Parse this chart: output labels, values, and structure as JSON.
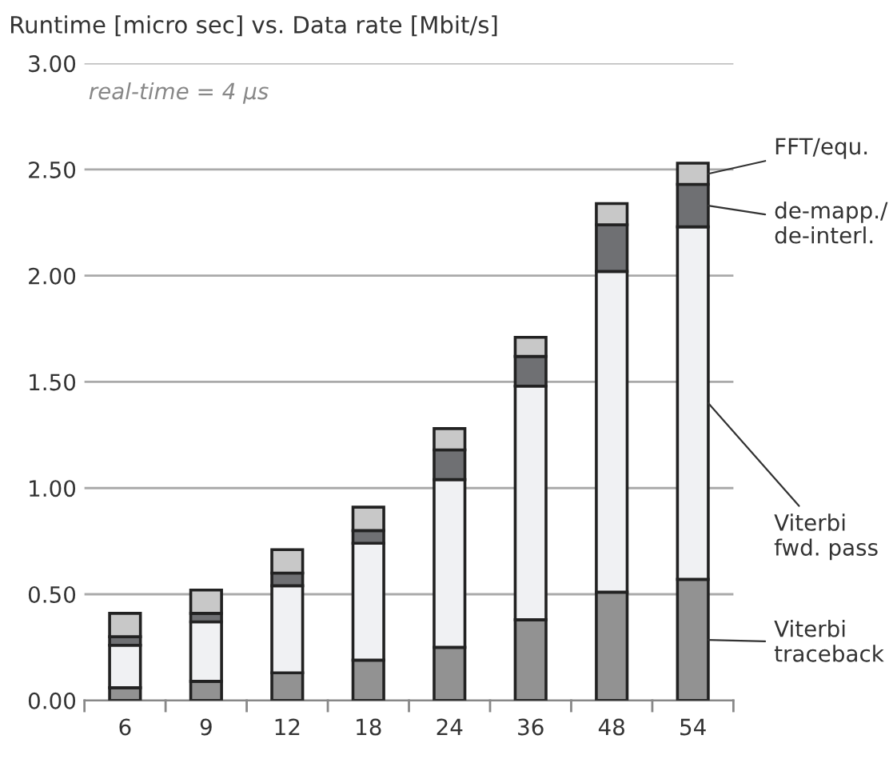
{
  "chart_data": {
    "type": "bar",
    "stacked": true,
    "title": "Runtime [micro sec] vs. Data rate [Mbit/s]",
    "categories": [
      "6",
      "9",
      "12",
      "18",
      "24",
      "36",
      "48",
      "54"
    ],
    "series": [
      {
        "name": "Viterbi\ntraceback",
        "color": "#929292",
        "values": [
          0.06,
          0.09,
          0.13,
          0.19,
          0.25,
          0.38,
          0.51,
          0.57
        ]
      },
      {
        "name": "Viterbi\nfwd. pass",
        "color": "#f0f1f3",
        "values": [
          0.2,
          0.28,
          0.41,
          0.55,
          0.79,
          1.1,
          1.51,
          1.66
        ]
      },
      {
        "name": "de-mapp./\nde-interl.",
        "color": "#6f7073",
        "values": [
          0.04,
          0.04,
          0.06,
          0.06,
          0.14,
          0.14,
          0.22,
          0.2
        ]
      },
      {
        "name": "FFT/equ.",
        "color": "#c8c8c8",
        "values": [
          0.11,
          0.11,
          0.11,
          0.11,
          0.1,
          0.09,
          0.1,
          0.1
        ]
      }
    ],
    "ylim": [
      0,
      3
    ],
    "yticks": [
      {
        "value": 0,
        "label": "0.00"
      },
      {
        "value": 0.5,
        "label": "0.50"
      },
      {
        "value": 1,
        "label": "1.00"
      },
      {
        "value": 1.5,
        "label": "1.50"
      },
      {
        "value": 2,
        "label": "2.00"
      },
      {
        "value": 2.5,
        "label": "2.50"
      },
      {
        "value": 3,
        "label": "3.00"
      }
    ],
    "grid": "y",
    "legend": false,
    "annotations": [
      "real-time = 4 µs"
    ]
  }
}
